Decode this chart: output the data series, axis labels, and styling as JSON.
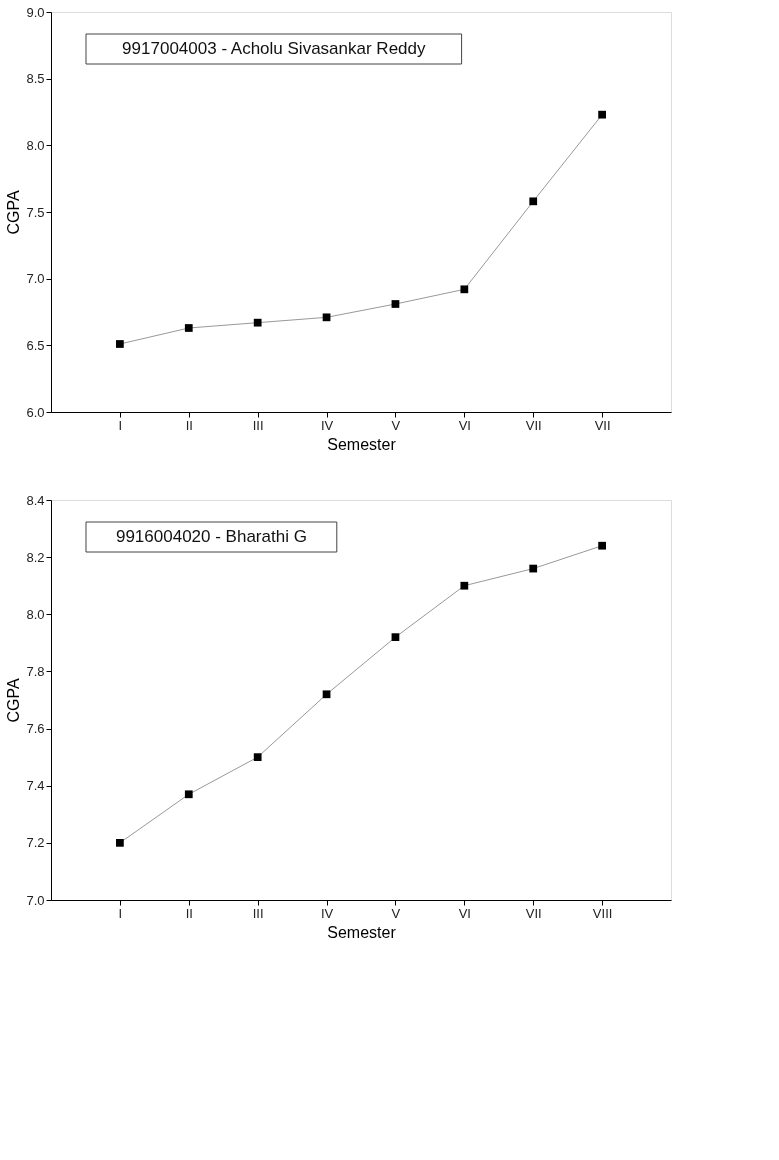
{
  "chart_data": [
    {
      "type": "line",
      "xlabel": "Semester",
      "ylabel": "CGPA",
      "categories": [
        "I",
        "II",
        "III",
        "IV",
        "V",
        "VI",
        "VII",
        "VII"
      ],
      "series": [
        {
          "color": "#000000",
          "values": [
            6.51,
            6.63,
            6.67,
            6.71,
            6.81,
            6.92,
            7.58,
            8.23
          ]
        }
      ],
      "ylim": [
        6.0,
        9.0
      ],
      "yticks": [
        {
          "value": 6,
          "label": "6.0"
        },
        6.5,
        {
          "value": 7,
          "label": "7.0"
        },
        7.5,
        {
          "value": 8,
          "label": "8.0"
        },
        8.5,
        {
          "value": 9,
          "label": "9.0"
        }
      ],
      "marker": "square",
      "grid": false,
      "annotations": [
        "9917004003 - Acholu Sivasankar Reddy"
      ]
    },
    {
      "type": "line",
      "xlabel": "Semester",
      "ylabel": "CGPA",
      "categories": [
        "I",
        "II",
        "III",
        "IV",
        "V",
        "VI",
        "VII",
        "VIII"
      ],
      "series": [
        {
          "color": "#000000",
          "values": [
            7.2,
            7.37,
            7.5,
            7.72,
            7.92,
            8.1,
            8.16,
            8.24
          ]
        }
      ],
      "ylim": [
        7.0,
        8.4
      ],
      "yticks": [
        {
          "value": 7,
          "label": "7.0"
        },
        7.2,
        7.4,
        7.6,
        7.8,
        {
          "value": 8,
          "label": "8.0"
        },
        8.2,
        8.4
      ],
      "marker": "square",
      "grid": false,
      "annotations": [
        "9916004020 - Bharathi G"
      ]
    }
  ]
}
